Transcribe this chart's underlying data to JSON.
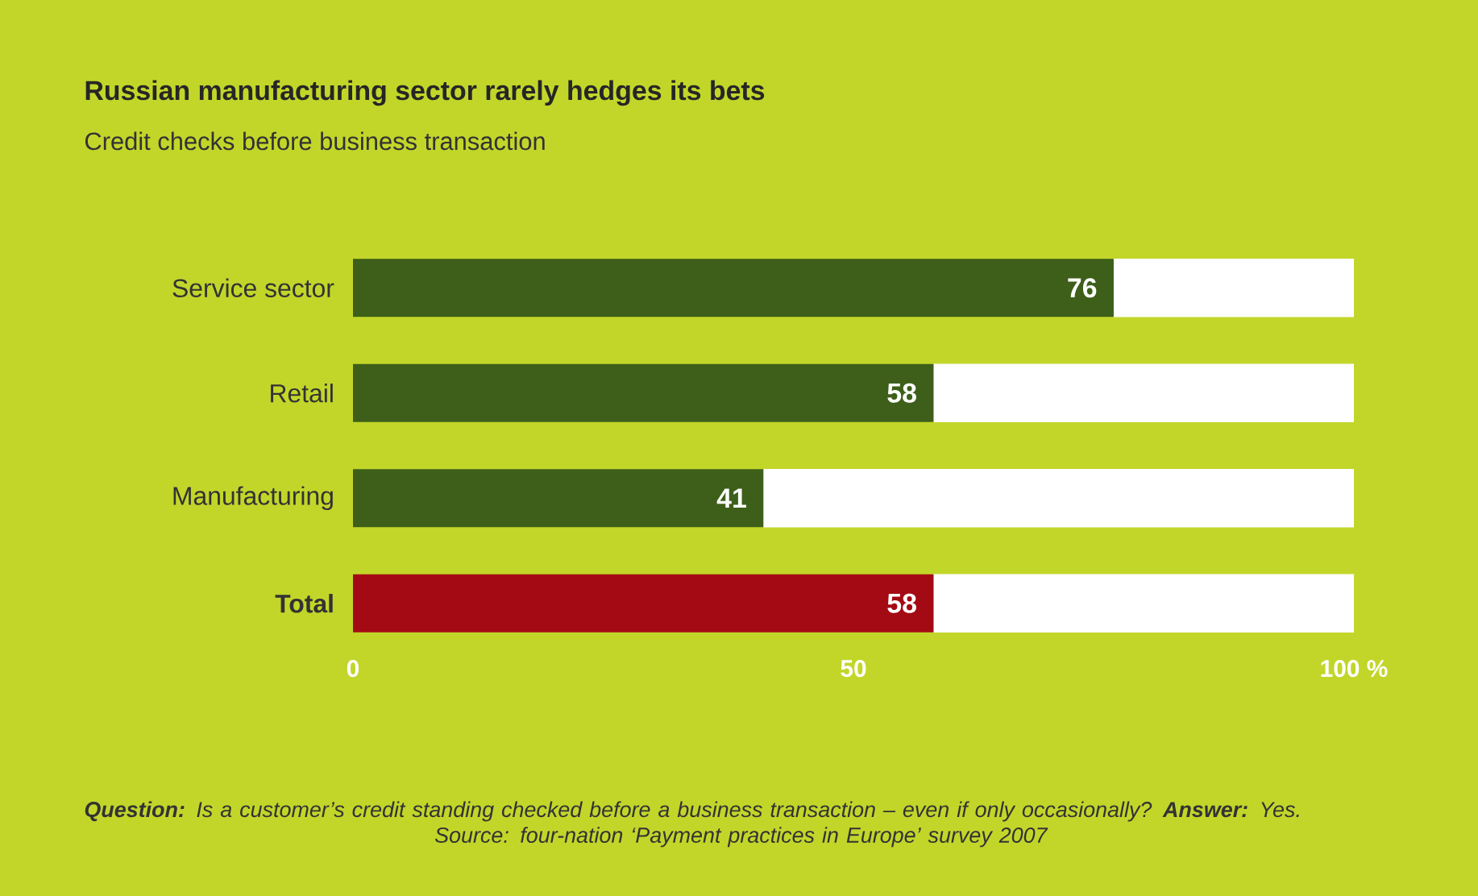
{
  "chart_data": {
    "type": "bar",
    "orientation": "horizontal",
    "stacked": true,
    "title": "Russian manufacturing sector rarely hedges its bets",
    "subtitle": "Credit checks before business transaction",
    "categories": [
      "Service sector",
      "Retail",
      "Manufacturing",
      "Total"
    ],
    "series": [
      {
        "colors": [
          "#3d5f19",
          "#3d5f19",
          "#3d5f19",
          "#a30a14"
        ],
        "values": [
          76,
          58,
          41,
          58
        ],
        "value_labels": [
          "76",
          "58",
          "41",
          "58"
        ]
      },
      {
        "color": "#ffffff",
        "values": [
          24,
          42,
          59,
          42
        ]
      }
    ],
    "xlim": [
      0,
      100
    ],
    "xticks": [
      0,
      50,
      {
        "value": 100,
        "label": "100 %"
      }
    ],
    "grid": false,
    "annotations": [
      "**Question:** Is a customer’s credit standing checked before a business transaction – even if only occasionally? **Answer:** Yes.",
      "Source: four-nation ‘Payment practices in Europe’ survey 2007"
    ]
  }
}
